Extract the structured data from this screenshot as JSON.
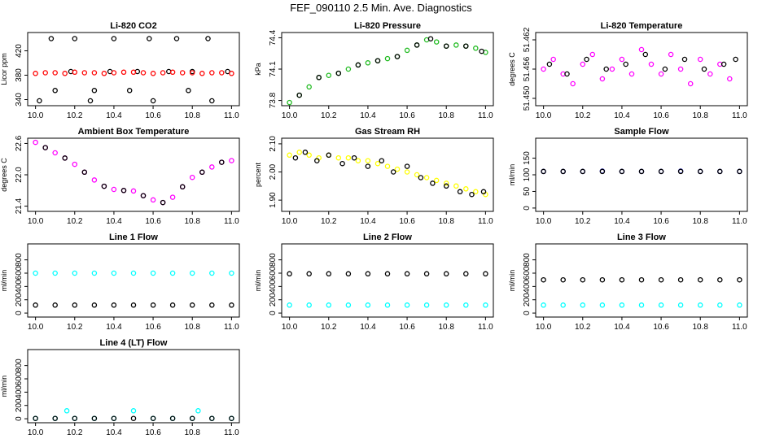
{
  "page": {
    "title": "FEF_090110  2.5 Min. Ave. Diagnostics"
  },
  "chart_data": [
    {
      "type": "scatter",
      "title": "Li-820 CO2",
      "xlabel": "",
      "ylabel": "Licor ppm",
      "xlim": [
        9.96,
        11.04
      ],
      "ylim": [
        330,
        450
      ],
      "xticks": [
        "10.0",
        "10.2",
        "10.4",
        "10.6",
        "10.8",
        "11.0"
      ],
      "yticks": [
        "340",
        "380",
        "420"
      ],
      "series": [
        {
          "color": "#000000",
          "marker": "circle",
          "x": [
            10.02,
            10.08,
            10.1,
            10.18,
            10.2,
            10.28,
            10.3,
            10.38,
            10.4,
            10.48,
            10.52,
            10.58,
            10.6,
            10.68,
            10.72,
            10.78,
            10.8,
            10.88,
            10.9,
            10.98
          ],
          "y": [
            338,
            440,
            355,
            386,
            440,
            338,
            355,
            386,
            440,
            355,
            386,
            440,
            338,
            386,
            440,
            355,
            386,
            440,
            338,
            386
          ]
        },
        {
          "color": "#ff0000",
          "marker": "circle",
          "x": [
            10.0,
            10.05,
            10.1,
            10.15,
            10.2,
            10.25,
            10.3,
            10.35,
            10.4,
            10.45,
            10.5,
            10.55,
            10.6,
            10.65,
            10.7,
            10.75,
            10.8,
            10.85,
            10.9,
            10.95,
            11.0
          ],
          "y": [
            383,
            384,
            384,
            383,
            385,
            384,
            384,
            383,
            384,
            385,
            385,
            384,
            383,
            384,
            385,
            384,
            384,
            383,
            384,
            384,
            383
          ]
        }
      ]
    },
    {
      "type": "line",
      "title": "Li-820 Pressure",
      "xlabel": "",
      "ylabel": "kPa",
      "xlim": [
        9.96,
        11.04
      ],
      "ylim": [
        73.75,
        74.45
      ],
      "xticks": [
        "10.0",
        "10.2",
        "10.4",
        "10.6",
        "10.8",
        "11.0"
      ],
      "yticks": [
        "73.8",
        "74.1",
        "74.4"
      ],
      "series": [
        {
          "color": "#22bb22",
          "marker": "circle",
          "x": [
            10.0,
            10.05,
            10.1,
            10.15,
            10.2,
            10.25,
            10.3,
            10.35,
            10.4,
            10.45,
            10.5,
            10.55,
            10.6,
            10.65,
            10.7,
            10.75,
            10.8,
            10.85,
            10.9,
            10.95,
            11.0
          ],
          "y": [
            73.78,
            73.85,
            73.93,
            74.02,
            74.04,
            74.06,
            74.1,
            74.14,
            74.16,
            74.18,
            74.2,
            74.22,
            74.28,
            74.33,
            74.38,
            74.36,
            74.32,
            74.33,
            74.32,
            74.3,
            74.26
          ]
        },
        {
          "color": "#000000",
          "marker": "circle",
          "x": [
            10.05,
            10.15,
            10.25,
            10.35,
            10.45,
            10.55,
            10.65,
            10.72,
            10.8,
            10.9,
            10.98
          ],
          "y": [
            73.85,
            74.02,
            74.06,
            74.14,
            74.18,
            74.22,
            74.33,
            74.39,
            74.32,
            74.32,
            74.27
          ]
        }
      ]
    },
    {
      "type": "scatter",
      "title": "Li-820 Temperature",
      "xlabel": "",
      "ylabel": "degrees C",
      "xlim": [
        9.96,
        11.04
      ],
      "ylim": [
        51.4485,
        51.4635
      ],
      "xticks": [
        "10.0",
        "10.2",
        "10.4",
        "10.6",
        "10.8",
        "11.0"
      ],
      "yticks": [
        "51.450",
        "51.456",
        "51.462"
      ],
      "series": [
        {
          "color": "#ff00ff",
          "marker": "circle",
          "x": [
            10.0,
            10.05,
            10.1,
            10.15,
            10.2,
            10.25,
            10.3,
            10.35,
            10.4,
            10.45,
            10.5,
            10.55,
            10.6,
            10.65,
            10.7,
            10.75,
            10.8,
            10.85,
            10.9,
            10.95
          ],
          "y": [
            51.456,
            51.458,
            51.455,
            51.453,
            51.457,
            51.459,
            51.454,
            51.456,
            51.458,
            51.455,
            51.46,
            51.457,
            51.455,
            51.459,
            51.456,
            51.453,
            51.458,
            51.455,
            51.457,
            51.454
          ]
        },
        {
          "color": "#000000",
          "marker": "circle",
          "x": [
            10.03,
            10.12,
            10.22,
            10.32,
            10.42,
            10.52,
            10.62,
            10.72,
            10.82,
            10.92,
            10.98
          ],
          "y": [
            51.457,
            51.455,
            51.458,
            51.456,
            51.457,
            51.459,
            51.456,
            51.458,
            51.456,
            51.457,
            51.458
          ]
        }
      ]
    },
    {
      "type": "line",
      "title": "Ambient Box Temperature",
      "xlabel": "",
      "ylabel": "degrees C",
      "xlim": [
        9.96,
        11.04
      ],
      "ylim": [
        21.3,
        22.7
      ],
      "xticks": [
        "10.0",
        "10.2",
        "10.4",
        "10.6",
        "10.8",
        "11.0"
      ],
      "yticks": [
        "21.4",
        "22.0",
        "22.6"
      ],
      "series": [
        {
          "color": "#ff00ff",
          "marker": "circle",
          "x": [
            10.0,
            10.05,
            10.1,
            10.15,
            10.2,
            10.25,
            10.3,
            10.35,
            10.4,
            10.45,
            10.5,
            10.55,
            10.6,
            10.65,
            10.7,
            10.75,
            10.8,
            10.85,
            10.9,
            10.95,
            11.0
          ],
          "y": [
            22.62,
            22.52,
            22.42,
            22.32,
            22.2,
            22.05,
            21.9,
            21.78,
            21.72,
            21.7,
            21.69,
            21.6,
            21.52,
            21.47,
            21.57,
            21.77,
            21.95,
            22.05,
            22.15,
            22.24,
            22.27
          ]
        },
        {
          "color": "#000000",
          "marker": "circle",
          "x": [
            10.05,
            10.15,
            10.25,
            10.35,
            10.45,
            10.55,
            10.65,
            10.75,
            10.85,
            10.95
          ],
          "y": [
            22.52,
            22.32,
            22.05,
            21.78,
            21.7,
            21.6,
            21.47,
            21.77,
            22.05,
            22.24
          ]
        }
      ]
    },
    {
      "type": "scatter",
      "title": "Gas Stream RH",
      "xlabel": "",
      "ylabel": "percent",
      "xlim": [
        9.96,
        11.04
      ],
      "ylim": [
        1.86,
        2.12
      ],
      "xticks": [
        "10.0",
        "10.2",
        "10.4",
        "10.6",
        "10.8",
        "11.0"
      ],
      "yticks": [
        "1.90",
        "2.00",
        "2.10"
      ],
      "series": [
        {
          "color": "#ffff00",
          "marker": "circle",
          "x": [
            10.0,
            10.05,
            10.1,
            10.15,
            10.2,
            10.25,
            10.3,
            10.35,
            10.4,
            10.45,
            10.5,
            10.55,
            10.6,
            10.65,
            10.7,
            10.75,
            10.8,
            10.85,
            10.9,
            10.95,
            11.0
          ],
          "y": [
            2.06,
            2.07,
            2.06,
            2.05,
            2.06,
            2.05,
            2.05,
            2.04,
            2.04,
            2.03,
            2.02,
            2.01,
            2.0,
            1.99,
            1.98,
            1.97,
            1.96,
            1.95,
            1.94,
            1.93,
            1.92
          ]
        },
        {
          "color": "#000000",
          "marker": "circle",
          "x": [
            10.03,
            10.08,
            10.14,
            10.2,
            10.27,
            10.33,
            10.4,
            10.47,
            10.53,
            10.6,
            10.67,
            10.73,
            10.8,
            10.87,
            10.93,
            10.99
          ],
          "y": [
            2.05,
            2.07,
            2.04,
            2.06,
            2.03,
            2.05,
            2.02,
            2.04,
            2.0,
            2.02,
            1.98,
            1.96,
            1.95,
            1.93,
            1.92,
            1.93
          ]
        }
      ]
    },
    {
      "type": "line",
      "title": "Sample Flow",
      "xlabel": "",
      "ylabel": "ml/min",
      "xlim": [
        9.96,
        11.04
      ],
      "ylim": [
        -10,
        210
      ],
      "xticks": [
        "10.0",
        "10.2",
        "10.4",
        "10.6",
        "10.8",
        "11.0"
      ],
      "yticks": [
        "0",
        "50",
        "100",
        "150"
      ],
      "series": [
        {
          "color": "#0000cc",
          "marker": "circle",
          "x": [
            10.0,
            10.1,
            10.2,
            10.3,
            10.4,
            10.5,
            10.6,
            10.7,
            10.8,
            10.9,
            11.0
          ],
          "y": [
            110,
            110,
            110,
            111,
            110,
            110,
            110,
            111,
            110,
            110,
            110
          ]
        },
        {
          "color": "#000000",
          "marker": "circle",
          "x": [
            10.0,
            10.1,
            10.2,
            10.3,
            10.4,
            10.5,
            10.6,
            10.7,
            10.8,
            10.9,
            11.0
          ],
          "y": [
            110,
            110,
            110,
            110,
            110,
            110,
            110,
            110,
            110,
            110,
            110
          ]
        }
      ]
    },
    {
      "type": "line",
      "title": "Line 1 Flow",
      "xlabel": "",
      "ylabel": "ml/min",
      "xlim": [
        9.96,
        11.04
      ],
      "ylim": [
        -60,
        1040
      ],
      "xticks": [
        "10.0",
        "10.2",
        "10.4",
        "10.6",
        "10.8",
        "11.0"
      ],
      "yticks": [
        "0",
        "200",
        "400",
        "600",
        "800"
      ],
      "series": [
        {
          "color": "#00ffff",
          "marker": "circle",
          "x": [
            10.0,
            10.1,
            10.2,
            10.3,
            10.4,
            10.5,
            10.6,
            10.7,
            10.8,
            10.9,
            11.0
          ],
          "y": [
            600,
            600,
            600,
            600,
            600,
            600,
            600,
            600,
            600,
            600,
            600
          ]
        },
        {
          "color": "#000000",
          "marker": "circle",
          "x": [
            10.0,
            10.1,
            10.2,
            10.3,
            10.4,
            10.5,
            10.6,
            10.7,
            10.8,
            10.9,
            11.0
          ],
          "y": [
            120,
            120,
            120,
            120,
            120,
            120,
            120,
            120,
            120,
            120,
            120
          ]
        }
      ]
    },
    {
      "type": "line",
      "title": "Line 2 Flow",
      "xlabel": "",
      "ylabel": "ml/min",
      "xlim": [
        9.96,
        11.04
      ],
      "ylim": [
        -60,
        1040
      ],
      "xticks": [
        "10.0",
        "10.2",
        "10.4",
        "10.6",
        "10.8",
        "11.0"
      ],
      "yticks": [
        "0",
        "200",
        "400",
        "600",
        "800"
      ],
      "series": [
        {
          "color": "#00ffff",
          "marker": "circle",
          "x": [
            10.0,
            10.1,
            10.2,
            10.3,
            10.4,
            10.5,
            10.6,
            10.7,
            10.8,
            10.9,
            11.0
          ],
          "y": [
            120,
            120,
            120,
            120,
            120,
            120,
            120,
            120,
            120,
            120,
            120
          ]
        },
        {
          "color": "#000000",
          "marker": "circle",
          "x": [
            10.0,
            10.1,
            10.2,
            10.3,
            10.4,
            10.5,
            10.6,
            10.7,
            10.8,
            10.9,
            11.0
          ],
          "y": [
            590,
            590,
            590,
            590,
            590,
            590,
            590,
            590,
            590,
            590,
            590
          ]
        }
      ]
    },
    {
      "type": "line",
      "title": "Line 3 Flow",
      "xlabel": "",
      "ylabel": "ml/min",
      "xlim": [
        9.96,
        11.04
      ],
      "ylim": [
        -60,
        1040
      ],
      "xticks": [
        "10.0",
        "10.2",
        "10.4",
        "10.6",
        "10.8",
        "11.0"
      ],
      "yticks": [
        "0",
        "200",
        "400",
        "600",
        "800"
      ],
      "series": [
        {
          "color": "#00ffff",
          "marker": "circle",
          "x": [
            10.0,
            10.1,
            10.2,
            10.3,
            10.4,
            10.5,
            10.6,
            10.7,
            10.8,
            10.9,
            11.0
          ],
          "y": [
            120,
            120,
            120,
            120,
            120,
            120,
            120,
            120,
            120,
            120,
            120
          ]
        },
        {
          "color": "#000000",
          "marker": "circle",
          "x": [
            10.0,
            10.1,
            10.2,
            10.3,
            10.4,
            10.5,
            10.6,
            10.7,
            10.8,
            10.9,
            11.0
          ],
          "y": [
            500,
            500,
            500,
            500,
            500,
            500,
            500,
            500,
            500,
            500,
            500
          ]
        }
      ]
    },
    {
      "type": "line",
      "title": "Line 4 (LT) Flow",
      "xlabel": "",
      "ylabel": "ml/min",
      "xlim": [
        9.96,
        11.04
      ],
      "ylim": [
        -60,
        1040
      ],
      "xticks": [
        "10.0",
        "10.2",
        "10.4",
        "10.6",
        "10.8",
        "11.0"
      ],
      "yticks": [
        "0",
        "200",
        "400",
        "600",
        "800"
      ],
      "series": [
        {
          "color": "#00ffff",
          "marker": "circle",
          "x": [
            10.0,
            10.1,
            10.16,
            10.2,
            10.3,
            10.4,
            10.5,
            10.6,
            10.7,
            10.8,
            10.83,
            10.9,
            11.0
          ],
          "y": [
            5,
            5,
            120,
            5,
            5,
            5,
            120,
            5,
            5,
            5,
            120,
            5,
            5
          ]
        },
        {
          "color": "#000000",
          "marker": "circle",
          "x": [
            10.0,
            10.1,
            10.2,
            10.3,
            10.4,
            10.5,
            10.6,
            10.7,
            10.8,
            10.9,
            11.0
          ],
          "y": [
            5,
            5,
            5,
            5,
            5,
            5,
            5,
            5,
            5,
            5,
            5
          ]
        }
      ]
    }
  ]
}
